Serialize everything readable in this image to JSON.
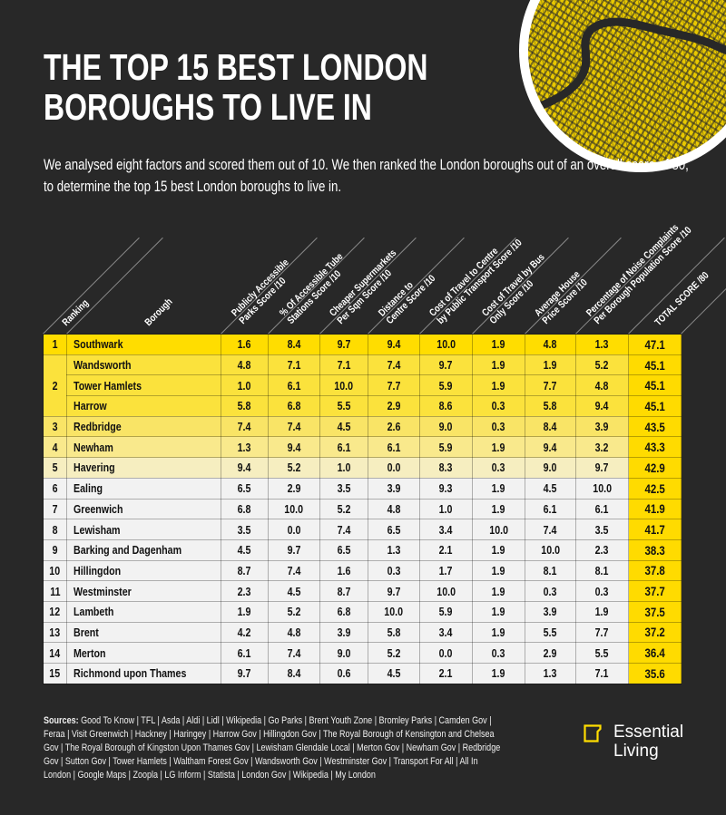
{
  "header": {
    "title_line1": "THE TOP 15 BEST LONDON",
    "title_line2": "BOROUGHS TO LIVE IN",
    "intro": "We analysed eight factors and scored them out of 10. We then ranked the London boroughs out of an overall score of 80, to determine the top 15 best London boroughs to live in."
  },
  "map": {
    "icon": "london-street-map-illustration",
    "accent": "#FFDD00"
  },
  "columns": {
    "ranking": "Ranking",
    "borough": "Borough",
    "c1a": "Publicly Accessible",
    "c1b": "Parks Score /10",
    "c2a": "% Of Accessible Tube",
    "c2b": "Stations Score /10",
    "c3a": "Cheaper Supermarkets",
    "c3b": "Per Sqm Score /10",
    "c4a": "Distance to",
    "c4b": "Centre Score /10",
    "c5a": "Cost of Travel to Centre",
    "c5b": "by Public Transport Score /10",
    "c6a": "Cost of Travel by Bus",
    "c6b": "Only Score /10",
    "c7a": "Average House",
    "c7b": "Price Score /10",
    "c8a": "Percentage of Noise Complaints",
    "c8b": "Per Borough Population Score /10",
    "total": "TOTAL SCORE /80"
  },
  "rows": [
    {
      "rank": "1",
      "borough": "Southwark",
      "v": [
        "1.6",
        "8.4",
        "9.7",
        "9.4",
        "10.0",
        "1.9",
        "4.8",
        "1.3"
      ],
      "total": "47.1"
    },
    {
      "rank": "2",
      "borough": "Wandsworth",
      "v": [
        "4.8",
        "7.1",
        "7.1",
        "7.4",
        "9.7",
        "1.9",
        "1.9",
        "5.2"
      ],
      "total": "45.1"
    },
    {
      "rank": "2",
      "borough": "Tower Hamlets",
      "v": [
        "1.0",
        "6.1",
        "10.0",
        "7.7",
        "5.9",
        "1.9",
        "7.7",
        "4.8"
      ],
      "total": "45.1"
    },
    {
      "rank": "2",
      "borough": "Harrow",
      "v": [
        "5.8",
        "6.8",
        "5.5",
        "2.9",
        "8.6",
        "0.3",
        "5.8",
        "9.4"
      ],
      "total": "45.1"
    },
    {
      "rank": "3",
      "borough": "Redbridge",
      "v": [
        "7.4",
        "7.4",
        "4.5",
        "2.6",
        "9.0",
        "0.3",
        "8.4",
        "3.9"
      ],
      "total": "43.5"
    },
    {
      "rank": "4",
      "borough": "Newham",
      "v": [
        "1.3",
        "9.4",
        "6.1",
        "6.1",
        "5.9",
        "1.9",
        "9.4",
        "3.2"
      ],
      "total": "43.3"
    },
    {
      "rank": "5",
      "borough": "Havering",
      "v": [
        "9.4",
        "5.2",
        "1.0",
        "0.0",
        "8.3",
        "0.3",
        "9.0",
        "9.7"
      ],
      "total": "42.9"
    },
    {
      "rank": "6",
      "borough": "Ealing",
      "v": [
        "6.5",
        "2.9",
        "3.5",
        "3.9",
        "9.3",
        "1.9",
        "4.5",
        "10.0"
      ],
      "total": "42.5"
    },
    {
      "rank": "7",
      "borough": "Greenwich",
      "v": [
        "6.8",
        "10.0",
        "5.2",
        "4.8",
        "1.0",
        "1.9",
        "6.1",
        "6.1"
      ],
      "total": "41.9"
    },
    {
      "rank": "8",
      "borough": "Lewisham",
      "v": [
        "3.5",
        "0.0",
        "7.4",
        "6.5",
        "3.4",
        "10.0",
        "7.4",
        "3.5"
      ],
      "total": "41.7"
    },
    {
      "rank": "9",
      "borough": "Barking and Dagenham",
      "v": [
        "4.5",
        "9.7",
        "6.5",
        "1.3",
        "2.1",
        "1.9",
        "10.0",
        "2.3"
      ],
      "total": "38.3"
    },
    {
      "rank": "10",
      "borough": "Hillingdon",
      "v": [
        "8.7",
        "7.4",
        "1.6",
        "0.3",
        "1.7",
        "1.9",
        "8.1",
        "8.1"
      ],
      "total": "37.8"
    },
    {
      "rank": "11",
      "borough": "Westminster",
      "v": [
        "2.3",
        "4.5",
        "8.7",
        "9.7",
        "10.0",
        "1.9",
        "0.3",
        "0.3"
      ],
      "total": "37.7"
    },
    {
      "rank": "12",
      "borough": "Lambeth",
      "v": [
        "1.9",
        "5.2",
        "6.8",
        "10.0",
        "5.9",
        "1.9",
        "3.9",
        "1.9"
      ],
      "total": "37.5"
    },
    {
      "rank": "13",
      "borough": "Brent",
      "v": [
        "4.2",
        "4.8",
        "3.9",
        "5.8",
        "3.4",
        "1.9",
        "5.5",
        "7.7"
      ],
      "total": "37.2"
    },
    {
      "rank": "14",
      "borough": "Merton",
      "v": [
        "6.1",
        "7.4",
        "9.0",
        "5.2",
        "0.0",
        "0.3",
        "2.9",
        "5.5"
      ],
      "total": "36.4"
    },
    {
      "rank": "15",
      "borough": "Richmond upon Thames",
      "v": [
        "9.7",
        "8.4",
        "0.6",
        "4.5",
        "2.1",
        "1.9",
        "1.3",
        "7.1"
      ],
      "total": "35.6"
    }
  ],
  "sources": {
    "label": "Sources:",
    "text": " Good To Know | TFL | Asda | Aldi | Lidl | Wikipedia | Go Parks | Brent Youth Zone | Bromley Parks | Camden Gov | Feraa | Visit Greenwich | Hackney | Haringey | Harrow Gov | Hillingdon Gov | The Royal Borough of Kensington and Chelsea Gov | The Royal Borough of Kingston Upon Thames Gov | Lewisham Glendale Local | Merton Gov | Newham Gov | Redbridge Gov | Sutton Gov | Tower Hamlets | Waltham Forest Gov | Wandsworth Gov | Westminster Gov | Transport For All | All In London | Google Maps | Zoopla | LG Inform | Statista | London Gov | Wikipedia | My London"
  },
  "logo": {
    "line1": "Essential",
    "line2": "Living",
    "icon": "essential-living-logo-mark",
    "color": "#FFDD00"
  },
  "chart_data": {
    "type": "table",
    "title": "THE TOP 15 BEST LONDON BOROUGHS TO LIVE IN",
    "subtitle": "We analysed eight factors and scored them out of 10. We then ranked the London boroughs out of an overall score of 80, to determine the top 15 best London boroughs to live in.",
    "columns": [
      "Ranking",
      "Borough",
      "Publicly Accessible Parks Score /10",
      "% Of Accessible Tube Stations Score /10",
      "Cheaper Supermarkets Per Sqm Score /10",
      "Distance to Centre Score /10",
      "Cost of Travel to Centre by Public Transport Score /10",
      "Cost of Travel by Bus Only Score /10",
      "Average House Price Score /10",
      "Percentage of Noise Complaints Per Borough Population Score /10",
      "TOTAL SCORE /80"
    ],
    "rows": [
      [
        1,
        "Southwark",
        1.6,
        8.4,
        9.7,
        9.4,
        10.0,
        1.9,
        4.8,
        1.3,
        47.1
      ],
      [
        2,
        "Wandsworth",
        4.8,
        7.1,
        7.1,
        7.4,
        9.7,
        1.9,
        1.9,
        5.2,
        45.1
      ],
      [
        2,
        "Tower Hamlets",
        1.0,
        6.1,
        10.0,
        7.7,
        5.9,
        1.9,
        7.7,
        4.8,
        45.1
      ],
      [
        2,
        "Harrow",
        5.8,
        6.8,
        5.5,
        2.9,
        8.6,
        0.3,
        5.8,
        9.4,
        45.1
      ],
      [
        3,
        "Redbridge",
        7.4,
        7.4,
        4.5,
        2.6,
        9.0,
        0.3,
        8.4,
        3.9,
        43.5
      ],
      [
        4,
        "Newham",
        1.3,
        9.4,
        6.1,
        6.1,
        5.9,
        1.9,
        9.4,
        3.2,
        43.3
      ],
      [
        5,
        "Havering",
        9.4,
        5.2,
        1.0,
        0.0,
        8.3,
        0.3,
        9.0,
        9.7,
        42.9
      ],
      [
        6,
        "Ealing",
        6.5,
        2.9,
        3.5,
        3.9,
        9.3,
        1.9,
        4.5,
        10.0,
        42.5
      ],
      [
        7,
        "Greenwich",
        6.8,
        10.0,
        5.2,
        4.8,
        1.0,
        1.9,
        6.1,
        6.1,
        41.9
      ],
      [
        8,
        "Lewisham",
        3.5,
        0.0,
        7.4,
        6.5,
        3.4,
        10.0,
        7.4,
        3.5,
        41.7
      ],
      [
        9,
        "Barking and Dagenham",
        4.5,
        9.7,
        6.5,
        1.3,
        2.1,
        1.9,
        10.0,
        2.3,
        38.3
      ],
      [
        10,
        "Hillingdon",
        8.7,
        7.4,
        1.6,
        0.3,
        1.7,
        1.9,
        8.1,
        8.1,
        37.8
      ],
      [
        11,
        "Westminster",
        2.3,
        4.5,
        8.7,
        9.7,
        10.0,
        1.9,
        0.3,
        0.3,
        37.7
      ],
      [
        12,
        "Lambeth",
        1.9,
        5.2,
        6.8,
        10.0,
        5.9,
        1.9,
        3.9,
        1.9,
        37.5
      ],
      [
        13,
        "Brent",
        4.2,
        4.8,
        3.9,
        5.8,
        3.4,
        1.9,
        5.5,
        7.7,
        37.2
      ],
      [
        14,
        "Merton",
        6.1,
        7.4,
        9.0,
        5.2,
        0.0,
        0.3,
        2.9,
        5.5,
        36.4
      ],
      [
        15,
        "Richmond upon Thames",
        9.7,
        8.4,
        0.6,
        4.5,
        2.1,
        1.9,
        1.3,
        7.1,
        35.6
      ]
    ]
  }
}
